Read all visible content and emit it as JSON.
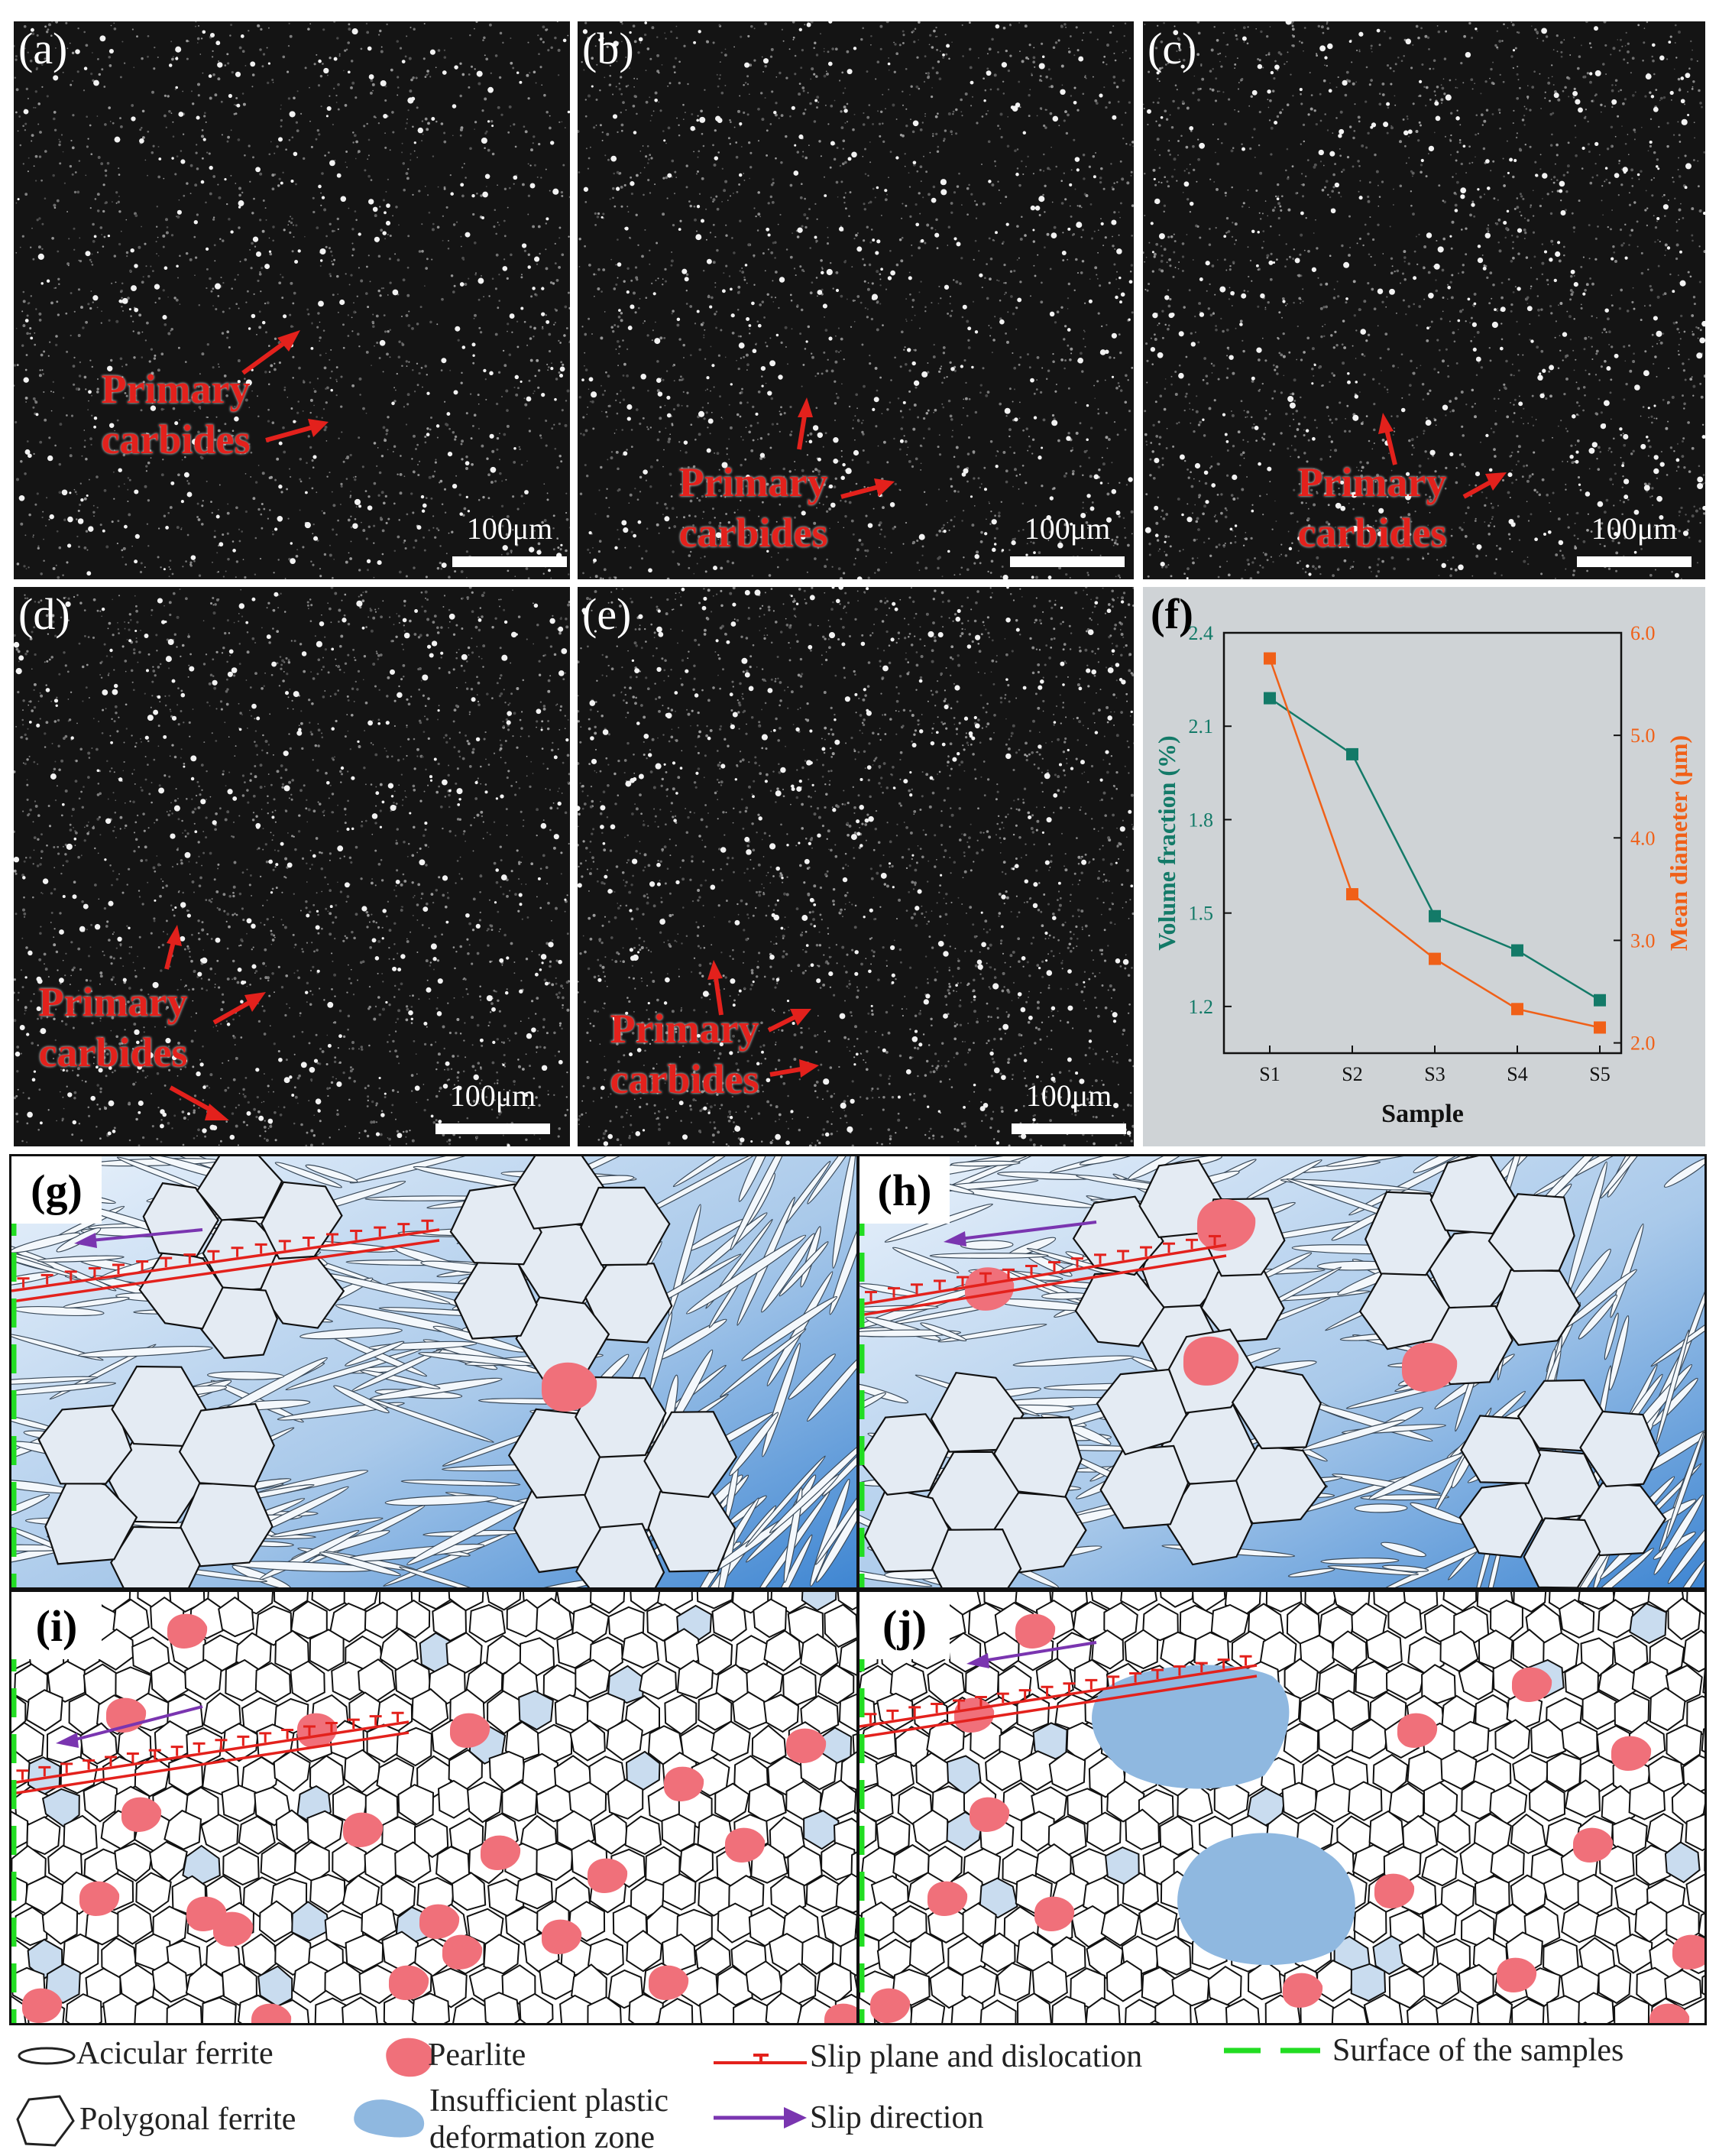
{
  "panels": {
    "a": {
      "label": "(a)",
      "annotation": [
        "Primary",
        "carbides"
      ],
      "scale": "100μm"
    },
    "b": {
      "label": "(b)",
      "annotation": [
        "Primary",
        "carbides"
      ],
      "scale": "100μm"
    },
    "c": {
      "label": "(c)",
      "annotation": [
        "Primary",
        "carbides"
      ],
      "scale": "100μm"
    },
    "d": {
      "label": "(d)",
      "annotation": [
        "Primary",
        "carbides"
      ],
      "scale": "100μm"
    },
    "e": {
      "label": "(e)",
      "annotation": [
        "Primary",
        "carbides"
      ],
      "scale": "100μm"
    },
    "f": {
      "label": "(f)"
    },
    "g": {
      "label": "(g)"
    },
    "h": {
      "label": "(h)"
    },
    "i": {
      "label": "(i)"
    },
    "j": {
      "label": "(j)"
    }
  },
  "colors": {
    "volume_series": "#137a68",
    "diameter_series": "#f06018",
    "annotation": "#e3211c",
    "pearlite": "#f0707a",
    "deformation_zone": "#8fb8e0",
    "slip_plane": "#e3211c",
    "slip_direction": "#7a35b0",
    "surface": "#22dd22",
    "matrix_blue": "#4a8fd6"
  },
  "chart_data": {
    "type": "line",
    "categories": [
      "S1",
      "S2",
      "S3",
      "S4",
      "S5"
    ],
    "xlabel": "Sample",
    "series": [
      {
        "name": "Volume fraction (%)",
        "axis": "left",
        "values": [
          2.19,
          2.01,
          1.49,
          1.38,
          1.22
        ]
      },
      {
        "name": "Mean diameter (μm)",
        "axis": "right",
        "values": [
          5.75,
          3.45,
          2.82,
          2.33,
          2.15
        ]
      }
    ],
    "ylabel_left": "Volume fraction (%)",
    "ylabel_right": "Mean diameter (μm)",
    "ylim_left": [
      1.05,
      2.4
    ],
    "ylim_right": [
      1.9,
      6.0
    ],
    "yticks_left": [
      "1.2",
      "1.5",
      "1.8",
      "2.1",
      "2.4"
    ],
    "yticks_right": [
      "2.0",
      "3.0",
      "4.0",
      "5.0",
      "6.0"
    ],
    "grid": false
  },
  "legend": {
    "acicular_ferrite": "Acicular ferrite",
    "polygonal_ferrite": "Polygonal ferrite",
    "pearlite": "Pearlite",
    "insufficient_zone": [
      "Insufficient plastic",
      "deformation zone"
    ],
    "slip_plane": "Slip plane and dislocation",
    "slip_direction": "Slip direction",
    "surface": "Surface of the samples"
  }
}
